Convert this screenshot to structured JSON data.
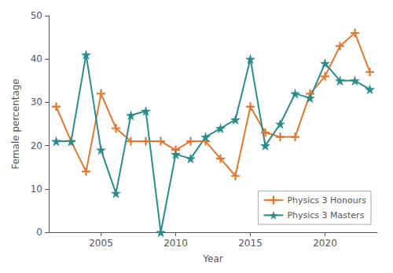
{
  "chart_data": {
    "type": "line",
    "x": [
      2002,
      2003,
      2004,
      2005,
      2006,
      2007,
      2008,
      2009,
      2010,
      2011,
      2012,
      2013,
      2014,
      2015,
      2016,
      2017,
      2018,
      2019,
      2020,
      2021,
      2022,
      2023
    ],
    "series": [
      {
        "name": "Physics 3 Honours",
        "color": "#E07830",
        "marker": "plus",
        "values": [
          29,
          21,
          14,
          32,
          24,
          21,
          21,
          21,
          19,
          21,
          21,
          17,
          13,
          29,
          23,
          22,
          22,
          32,
          36,
          43,
          46,
          37
        ]
      },
      {
        "name": "Physics 3 Masters",
        "color": "#2A8C8C",
        "marker": "star",
        "values": [
          21,
          21,
          41,
          19,
          9,
          27,
          28,
          0,
          18,
          17,
          22,
          24,
          26,
          40,
          20,
          25,
          32,
          31,
          39,
          35,
          35,
          33
        ]
      }
    ],
    "xlabel": "Year",
    "ylabel": "Female percentage",
    "xlim": [
      2001.5,
      2023.5
    ],
    "xticks": [
      2005,
      2010,
      2015,
      2020
    ],
    "ylim": [
      0,
      50
    ],
    "yticks": [
      0,
      10,
      20,
      30,
      40,
      50
    ],
    "grid": false,
    "legend": "lower right"
  }
}
